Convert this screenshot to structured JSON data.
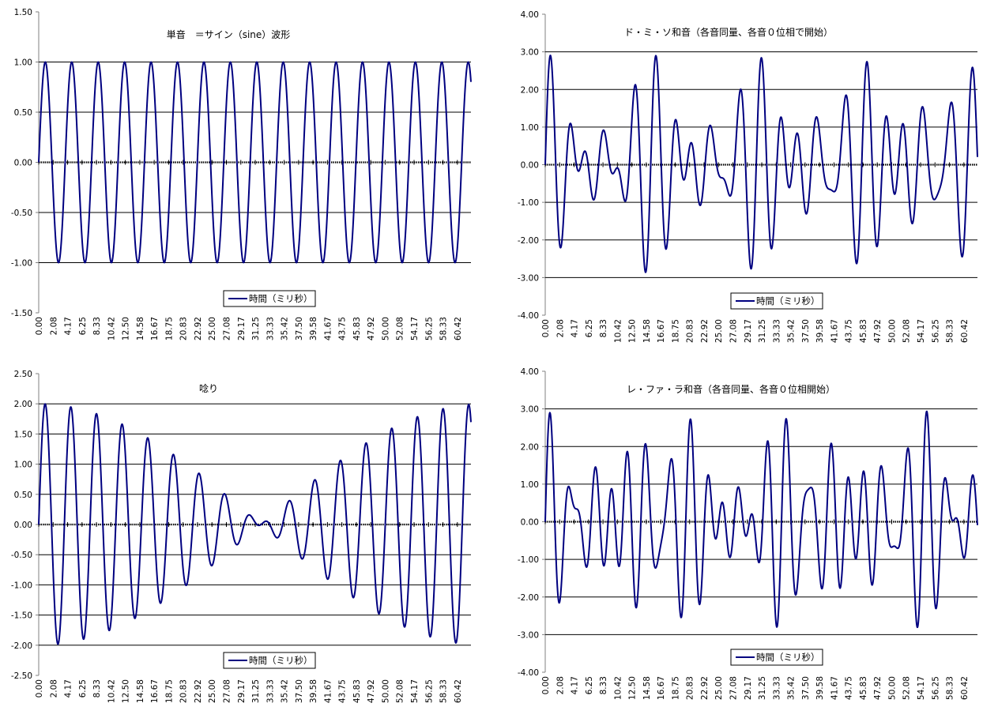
{
  "legend_label": "時間（ミリ秒）",
  "x_tick_labels": [
    "0.00",
    "2.08",
    "4.17",
    "6.25",
    "8.33",
    "10.42",
    "12.50",
    "14.58",
    "16.67",
    "18.75",
    "20.83",
    "22.92",
    "25.00",
    "27.08",
    "29.17",
    "31.25",
    "33.33",
    "35.42",
    "37.50",
    "39.58",
    "41.67",
    "43.75",
    "45.83",
    "47.92",
    "50.00",
    "52.08",
    "54.17",
    "56.25",
    "58.33",
    "60.42"
  ],
  "colors": {
    "series": "#000080",
    "grid": "#000000",
    "zero_line": "#000000",
    "background": "#ffffff"
  },
  "chart_data": [
    {
      "type": "line",
      "title": "単音　＝サイン（sine）波形",
      "xlabel": "時間（ミリ秒）",
      "ylabel": "",
      "x_range_ms": [
        0,
        62.5
      ],
      "ylim": [
        -1.5,
        1.5
      ],
      "y_ticks": [
        "1.50",
        "1.00",
        "0.50",
        "0.00",
        "-0.50",
        "-1.00",
        "-1.50"
      ],
      "gridlines": [
        1.0,
        0.5,
        -0.5,
        -1.0
      ],
      "legend": "bottom-center",
      "series": [
        {
          "name": "時間（ミリ秒）",
          "frequencies_hz": [
            261.63
          ],
          "relative_amplitudes": [
            1
          ],
          "approx_peak_values": [
            1.0,
            -1.0
          ]
        }
      ]
    },
    {
      "type": "line",
      "title": "ド・ミ・ソ和音（各音同量、各音０位相で開始）",
      "xlabel": "時間（ミリ秒）",
      "ylabel": "",
      "x_range_ms": [
        0,
        62.5
      ],
      "ylim": [
        -4.0,
        4.0
      ],
      "y_ticks": [
        "4.00",
        "3.00",
        "2.00",
        "1.00",
        "0.00",
        "-1.00",
        "-2.00",
        "-3.00",
        "-4.00"
      ],
      "gridlines": [
        3.0,
        2.0,
        1.0,
        -1.0,
        -2.0,
        -3.0
      ],
      "legend": "bottom-center",
      "series": [
        {
          "name": "時間（ミリ秒）",
          "frequencies_hz": [
            261.63,
            329.63,
            392.0
          ],
          "relative_amplitudes": [
            1,
            1,
            1
          ],
          "approx_peak_values": [
            2.9,
            -2.9,
            2.2,
            -2.2,
            1.05,
            -1.05
          ]
        }
      ]
    },
    {
      "type": "line",
      "title": "唸り",
      "xlabel": "時間（ミリ秒）",
      "ylabel": "",
      "x_range_ms": [
        0,
        62.5
      ],
      "ylim": [
        -2.5,
        2.5
      ],
      "y_ticks": [
        "2.50",
        "2.00",
        "1.50",
        "1.00",
        "0.50",
        "0.00",
        "-0.50",
        "-1.00",
        "-1.50",
        "-2.00",
        "-2.50"
      ],
      "gridlines": [
        2.0,
        1.5,
        1.0,
        0.5,
        -0.5,
        -1.0,
        -1.5,
        -2.0
      ],
      "legend": "bottom-center",
      "series": [
        {
          "name": "時間（ミリ秒）",
          "frequencies_hz": [
            261.63,
            277.18
          ],
          "relative_amplitudes": [
            1,
            1
          ],
          "approx_peak_values": [
            2.0,
            -1.98,
            1.95,
            1.87,
            1.75,
            1.58,
            1.38,
            1.15,
            0.87,
            0.6,
            0.3,
            0.03,
            0.15,
            0.45,
            0.72,
            1.02,
            1.27,
            1.48
          ]
        }
      ]
    },
    {
      "type": "line",
      "title": "レ・ファ・ラ和音（各音同量、各音０位相開始）",
      "xlabel": "時間（ミリ秒）",
      "ylabel": "",
      "x_range_ms": [
        0,
        62.5
      ],
      "ylim": [
        -4.0,
        4.0
      ],
      "y_ticks": [
        "4.00",
        "3.00",
        "2.00",
        "1.00",
        "0.00",
        "-1.00",
        "-2.00",
        "-3.00",
        "-4.00"
      ],
      "gridlines": [
        3.0,
        2.0,
        1.0,
        -1.0,
        -2.0,
        -3.0
      ],
      "legend": "bottom-center",
      "series": [
        {
          "name": "時間（ミリ秒）",
          "frequencies_hz": [
            293.66,
            349.23,
            440.0
          ],
          "relative_amplitudes": [
            1,
            1,
            1
          ],
          "approx_peak_values": [
            2.9,
            -2.85,
            2.45,
            -2.45,
            2.3,
            -2.3
          ]
        }
      ]
    }
  ]
}
